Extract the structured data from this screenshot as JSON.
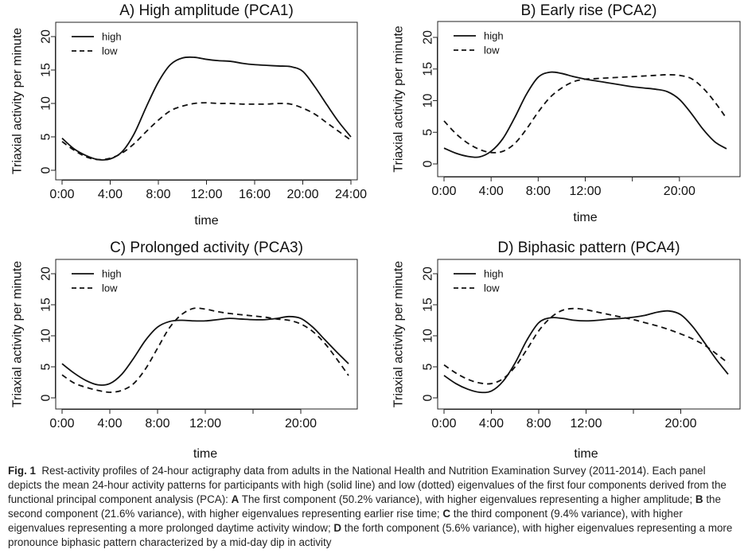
{
  "chart_data": [
    {
      "type": "line",
      "title": "A) High amplitude (PCA1)",
      "xlabel": "time",
      "ylabel": "Triaxial activity per minute",
      "xlim": [
        0,
        24
      ],
      "ylim": [
        0,
        20
      ],
      "xticks": [
        0,
        4,
        8,
        12,
        16,
        20,
        24
      ],
      "xtick_labels": [
        "0:00",
        "4:00",
        "8:00",
        "12:00",
        "16:00",
        "20:00",
        "24:00"
      ],
      "yticks": [
        0,
        5,
        10,
        15,
        20
      ],
      "ytick_labels": [
        "0",
        "5",
        "10",
        "15",
        "20"
      ],
      "legend_position": "top-left",
      "grid": false,
      "series": [
        {
          "name": "high",
          "style": "solid",
          "x": [
            0,
            1,
            2,
            3,
            4,
            5,
            6,
            7,
            8,
            9,
            10,
            11,
            12,
            13,
            14,
            15,
            16,
            17,
            18,
            19,
            20,
            21,
            22,
            23,
            24
          ],
          "y": [
            4.8,
            3.2,
            2.2,
            1.6,
            1.7,
            2.8,
            5.5,
            9.5,
            13.2,
            15.8,
            16.8,
            16.9,
            16.6,
            16.4,
            16.3,
            16.0,
            15.8,
            15.7,
            15.6,
            15.5,
            14.8,
            12.5,
            9.8,
            7.2,
            5.0
          ]
        },
        {
          "name": "low",
          "style": "dashed",
          "x": [
            0,
            1,
            2,
            3,
            4,
            5,
            6,
            7,
            8,
            9,
            10,
            11,
            12,
            13,
            14,
            15,
            16,
            17,
            18,
            19,
            20,
            21,
            22,
            23,
            24
          ],
          "y": [
            4.3,
            3.0,
            2.0,
            1.6,
            1.8,
            2.6,
            4.0,
            5.8,
            7.5,
            8.9,
            9.6,
            10.0,
            10.1,
            10.0,
            10.0,
            9.9,
            9.9,
            9.9,
            10.0,
            9.9,
            9.3,
            8.4,
            7.1,
            5.8,
            4.5
          ]
        }
      ]
    },
    {
      "type": "line",
      "title": "B) Early rise (PCA2)",
      "xlabel": "time",
      "ylabel": "Triaxial activity per minute",
      "xlim": [
        0,
        24
      ],
      "ylim": [
        0,
        20
      ],
      "xticks": [
        0,
        4,
        8,
        12,
        16,
        20
      ],
      "xtick_labels": [
        "0:00",
        "4:00",
        "8:00",
        "12:00",
        "",
        "20:00"
      ],
      "yticks": [
        0,
        5,
        10,
        15,
        20
      ],
      "ytick_labels": [
        "0",
        "5",
        "10",
        "15",
        "20"
      ],
      "legend_position": "top-left",
      "grid": false,
      "series": [
        {
          "name": "high",
          "style": "solid",
          "x": [
            0,
            1,
            2,
            3,
            4,
            5,
            6,
            7,
            8,
            9,
            10,
            11,
            12,
            13,
            14,
            15,
            16,
            17,
            18,
            19,
            20,
            21,
            22,
            23,
            24
          ],
          "y": [
            2.5,
            1.7,
            1.2,
            1.1,
            2.0,
            4.0,
            7.3,
            11.0,
            13.7,
            14.5,
            14.3,
            13.8,
            13.4,
            13.1,
            12.8,
            12.5,
            12.2,
            12.0,
            11.8,
            11.4,
            10.2,
            8.0,
            5.5,
            3.5,
            2.4
          ]
        },
        {
          "name": "low",
          "style": "dashed",
          "x": [
            0,
            1,
            2,
            3,
            4,
            5,
            6,
            7,
            8,
            9,
            10,
            11,
            12,
            13,
            14,
            15,
            16,
            17,
            18,
            19,
            20,
            21,
            22,
            23,
            24
          ],
          "y": [
            6.8,
            4.8,
            3.3,
            2.3,
            1.8,
            2.0,
            3.2,
            5.5,
            8.2,
            10.5,
            12.0,
            13.0,
            13.4,
            13.5,
            13.6,
            13.7,
            13.8,
            13.9,
            14.0,
            14.1,
            14.0,
            13.5,
            12.0,
            9.8,
            7.2
          ]
        }
      ]
    },
    {
      "type": "line",
      "title": "C) Prolonged activity (PCA3)",
      "xlabel": "time",
      "ylabel": "Triaxial activity per minute",
      "xlim": [
        0,
        24
      ],
      "ylim": [
        0,
        20
      ],
      "xticks": [
        0,
        4,
        8,
        12,
        16,
        20
      ],
      "xtick_labels": [
        "0:00",
        "4:00",
        "8:00",
        "12:00",
        "",
        "20:00"
      ],
      "yticks": [
        0,
        5,
        10,
        15,
        20
      ],
      "ytick_labels": [
        "0",
        "5",
        "10",
        "15",
        "20"
      ],
      "legend_position": "top-left",
      "grid": false,
      "series": [
        {
          "name": "high",
          "style": "solid",
          "x": [
            0,
            1,
            2,
            3,
            4,
            5,
            6,
            7,
            8,
            9,
            10,
            11,
            12,
            13,
            14,
            15,
            16,
            17,
            18,
            19,
            20,
            21,
            22,
            23,
            24
          ],
          "y": [
            5.5,
            4.0,
            2.8,
            2.1,
            2.3,
            3.8,
            6.4,
            9.3,
            11.4,
            12.3,
            12.5,
            12.4,
            12.4,
            12.6,
            12.8,
            12.7,
            12.6,
            12.6,
            12.8,
            13.1,
            12.8,
            11.4,
            9.4,
            7.4,
            5.5
          ]
        },
        {
          "name": "low",
          "style": "dashed",
          "x": [
            0,
            1,
            2,
            3,
            4,
            5,
            6,
            7,
            8,
            9,
            10,
            11,
            12,
            13,
            14,
            15,
            16,
            17,
            18,
            19,
            20,
            21,
            22,
            23,
            24
          ],
          "y": [
            3.7,
            2.4,
            1.7,
            1.2,
            0.9,
            1.2,
            2.3,
            4.7,
            8.0,
            11.3,
            13.4,
            14.4,
            14.3,
            13.9,
            13.6,
            13.4,
            13.2,
            13.0,
            12.7,
            12.5,
            11.9,
            10.7,
            8.8,
            6.3,
            3.6
          ]
        }
      ]
    },
    {
      "type": "line",
      "title": "D) Biphasic pattern (PCA4)",
      "xlabel": "time",
      "ylabel": "Triaxial activity per minute",
      "xlim": [
        0,
        24
      ],
      "ylim": [
        0,
        20
      ],
      "xticks": [
        0,
        4,
        8,
        12,
        16,
        20
      ],
      "xtick_labels": [
        "0:00",
        "4:00",
        "8:00",
        "12:00",
        "",
        "20:00"
      ],
      "yticks": [
        0,
        5,
        10,
        15,
        20
      ],
      "ytick_labels": [
        "0",
        "5",
        "10",
        "15",
        "20"
      ],
      "legend_position": "top-left",
      "grid": false,
      "series": [
        {
          "name": "high",
          "style": "solid",
          "x": [
            0,
            1,
            2,
            3,
            4,
            5,
            6,
            7,
            8,
            9,
            10,
            11,
            12,
            13,
            14,
            15,
            16,
            17,
            18,
            19,
            20,
            21,
            22,
            23,
            24
          ],
          "y": [
            3.6,
            2.3,
            1.4,
            0.9,
            1.1,
            2.7,
            5.6,
            9.3,
            12.1,
            12.9,
            12.8,
            12.5,
            12.4,
            12.5,
            12.7,
            12.8,
            13.0,
            13.3,
            13.8,
            14.0,
            13.4,
            11.5,
            8.9,
            6.2,
            3.8
          ]
        },
        {
          "name": "low",
          "style": "dashed",
          "x": [
            0,
            1,
            2,
            3,
            4,
            5,
            6,
            7,
            8,
            9,
            10,
            11,
            12,
            13,
            14,
            15,
            16,
            17,
            18,
            19,
            20,
            21,
            22,
            23,
            24
          ],
          "y": [
            5.3,
            4.0,
            3.0,
            2.4,
            2.3,
            3.1,
            5.0,
            7.8,
            10.8,
            12.9,
            14.1,
            14.4,
            14.2,
            13.8,
            13.4,
            13.0,
            12.6,
            12.1,
            11.6,
            11.0,
            10.3,
            9.5,
            8.5,
            7.1,
            5.6
          ]
        }
      ]
    }
  ],
  "caption": {
    "fig_label": "Fig. 1",
    "segments": [
      {
        "text": "Rest-activity profiles of 24-hour actigraphy data from adults in the National Health and Nutrition Examination Survey (2011-2014). Each panel depicts the mean 24-hour activity patterns for participants with high (solid line) and low (dotted) eigenvalues of the first four components derived from the functional principal component analysis (PCA): ",
        "bold": false
      },
      {
        "text": "A",
        "bold": true
      },
      {
        "text": " The first component (50.2% variance), with higher eigenvalues representing a higher amplitude; ",
        "bold": false
      },
      {
        "text": "B",
        "bold": true
      },
      {
        "text": " the second component (21.6% variance), with higher eigenvalues representing earlier rise time; ",
        "bold": false
      },
      {
        "text": "C",
        "bold": true
      },
      {
        "text": " the third component (9.4% variance), with higher eigenvalues representing a more prolonged daytime activity window; ",
        "bold": false
      },
      {
        "text": "D",
        "bold": true
      },
      {
        "text": " the forth component (5.6% variance), with higher eigenvalues representing a more pronounce biphasic pattern characterized by a mid-day dip in activity",
        "bold": false
      }
    ]
  }
}
